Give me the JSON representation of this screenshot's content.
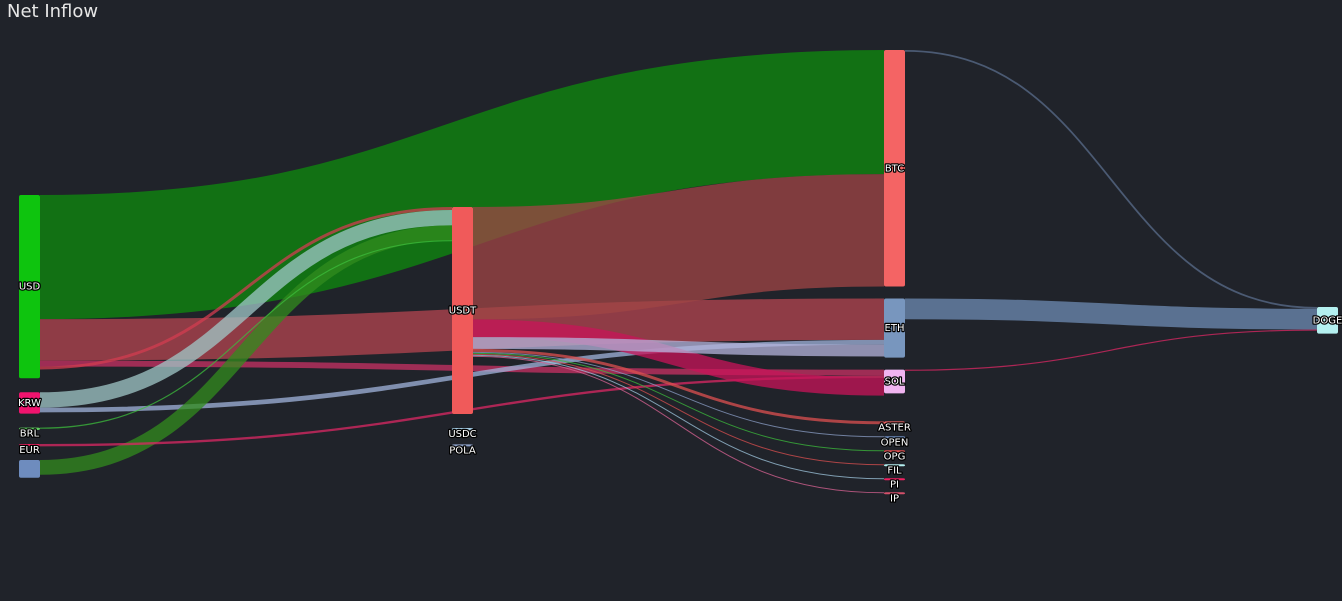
{
  "chart_data": {
    "type": "sankey",
    "title": "Net Inflow",
    "colors": {
      "background": "#20232a",
      "USD": "#0ec40e",
      "KRW": "#f0146e",
      "BRL": "#5fce5f",
      "EUR": "#f02060",
      "USDT": "#f05a5a",
      "USDC": "#a0c8e0",
      "POLA": "#8ca0c8",
      "BTC": "#f46464",
      "ETH": "#7896be",
      "SOL": "#f0b4f0",
      "DOGE": "#b4f0f0",
      "ASTER": "#f46464",
      "OPEN": "#6e8cbe",
      "OPG": "#e04f4f",
      "FIL": "#b4f0f0",
      "PI": "#f02060",
      "IP": "#d4506a",
      "unnamed": "#6e8cbe"
    },
    "columns": [
      [
        "USD",
        "KRW",
        "BRL",
        "EUR",
        "_brl2"
      ],
      [
        "USDT",
        "USDC",
        "POLA",
        "_u1",
        "_u2"
      ],
      [
        "BTC",
        "ETH",
        "SOL",
        "_e1",
        "_e2",
        "ASTER",
        "OPEN",
        "OPG",
        "FIL",
        "PI",
        "IP"
      ],
      [
        "DOGE"
      ]
    ],
    "nodes": [
      {
        "id": "USD",
        "label": "USD",
        "value": 620
      },
      {
        "id": "KRW",
        "label": "KRW",
        "value": 72
      },
      {
        "id": "_brl2",
        "label": "",
        "value": 60
      },
      {
        "id": "BRL",
        "label": "BRL",
        "value": 8
      },
      {
        "id": "EUR",
        "label": "EUR",
        "value": 6
      },
      {
        "id": "USDT",
        "label": "USDT",
        "value": 700
      },
      {
        "id": "USDC",
        "label": "USDC",
        "value": 8
      },
      {
        "id": "POLA",
        "label": "POLA",
        "value": 4
      },
      {
        "id": "BTC",
        "label": "BTC",
        "value": 800
      },
      {
        "id": "ETH",
        "label": "ETH",
        "value": 200
      },
      {
        "id": "SOL",
        "label": "SOL",
        "value": 80
      },
      {
        "id": "ASTER",
        "label": "ASTER",
        "value": 10
      },
      {
        "id": "OPEN",
        "label": "OPEN",
        "value": 4
      },
      {
        "id": "OPG",
        "label": "OPG",
        "value": 3
      },
      {
        "id": "FIL",
        "label": "FIL",
        "value": 3
      },
      {
        "id": "PI",
        "label": "PI",
        "value": 3
      },
      {
        "id": "IP",
        "label": "IP",
        "value": 3
      },
      {
        "id": "DOGE",
        "label": "DOGE",
        "value": 90
      }
    ],
    "links": [
      {
        "source": "USD",
        "target": "BTC",
        "value": 420,
        "color": "#0e8c0e"
      },
      {
        "source": "USD",
        "target": "ETH",
        "value": 140,
        "color": "#b44650"
      },
      {
        "source": "USD",
        "target": "SOL",
        "value": 20,
        "color": "#c83264"
      },
      {
        "source": "USD",
        "target": "USDT",
        "value": 10,
        "color": "#d23c50"
      },
      {
        "source": "KRW",
        "target": "USDT",
        "value": 52,
        "color": "#a0c8c8"
      },
      {
        "source": "KRW",
        "target": "ETH",
        "value": 16,
        "color": "#a0b4dc"
      },
      {
        "source": "_brl2",
        "target": "USDT",
        "value": 50,
        "color": "#328c1e"
      },
      {
        "source": "BRL",
        "target": "USDT",
        "value": 4,
        "color": "#3cbe3c"
      },
      {
        "source": "EUR",
        "target": "SOL",
        "value": 8,
        "color": "#dc2864"
      },
      {
        "source": "USDT",
        "target": "BTC",
        "value": 380,
        "color": "#a04646"
      },
      {
        "source": "USDT",
        "target": "SOL",
        "value": 60,
        "color": "#c8145a"
      },
      {
        "source": "USDT",
        "target": "ETH",
        "value": 40,
        "color": "#b4b4dc"
      },
      {
        "source": "USDT",
        "target": "ASTER",
        "value": 10,
        "color": "#dc5050"
      },
      {
        "source": "USDT",
        "target": "OPEN",
        "value": 3,
        "color": "#8ca0c8"
      },
      {
        "source": "USDT",
        "target": "OPG",
        "value": 2,
        "color": "#3cbe3c"
      },
      {
        "source": "USDT",
        "target": "FIL",
        "value": 2,
        "color": "#dc5050"
      },
      {
        "source": "USDT",
        "target": "PI",
        "value": 2,
        "color": "#a0c8e0"
      },
      {
        "source": "USDT",
        "target": "IP",
        "value": 2,
        "color": "#dc6496"
      },
      {
        "source": "BTC",
        "target": "DOGE",
        "value": 6,
        "color": "#5a6e8c"
      },
      {
        "source": "ETH",
        "target": "DOGE",
        "value": 70,
        "color": "#6e8cb4"
      },
      {
        "source": "SOL",
        "target": "DOGE",
        "value": 4,
        "color": "#dc2864"
      }
    ]
  }
}
